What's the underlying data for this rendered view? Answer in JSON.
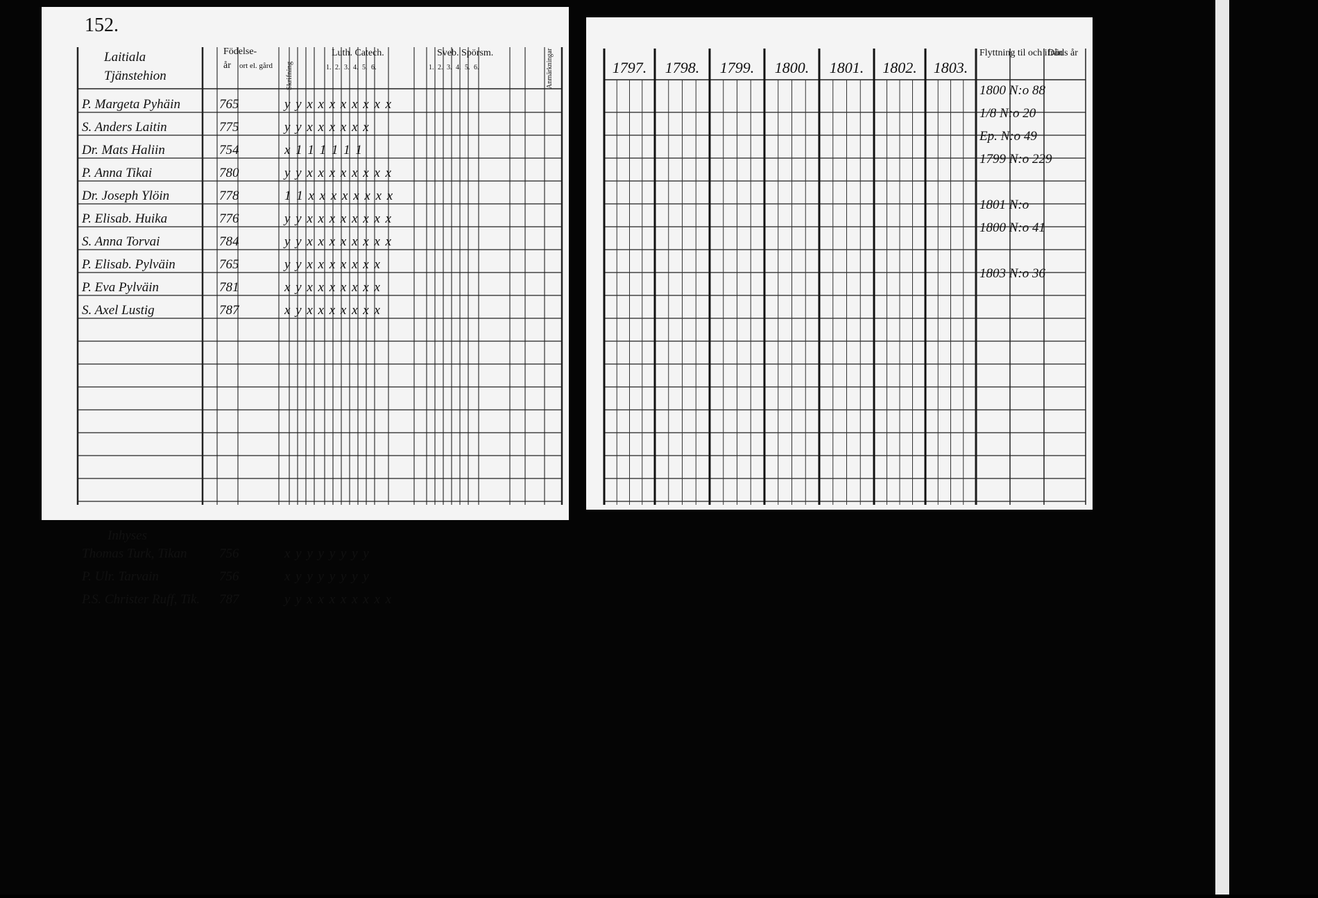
{
  "page_number": "152.",
  "left_page": {
    "village": "Laitiala",
    "subheading": "Tjänstehion",
    "headers": {
      "birth": "Födelse-",
      "year": "år",
      "place": "ort el. gård",
      "reading": "Skrifning",
      "catechism": "Luth. Catech.",
      "catechism_parts": [
        "1.",
        "2.",
        "3.",
        "4.",
        "5.",
        "6."
      ],
      "questions": "Sveb. Spörsm.",
      "questions_parts": [
        "1.",
        "2.",
        "3.",
        "4.",
        "5.",
        "6."
      ],
      "remarks": "Anmärkningar"
    },
    "rows": [
      {
        "name": "P. Margeta Pyhäin",
        "year": "765",
        "marks": "y y x x x x x x x x"
      },
      {
        "name": "S. Anders Laitin",
        "year": "775",
        "marks": "y y x x x x x x"
      },
      {
        "name": "Dr. Mats Haliin",
        "year": "754",
        "marks": "x 1 1 1 1 1 1"
      },
      {
        "name": "P. Anna Tikai",
        "year": "780",
        "marks": "y y x x x x x x x x"
      },
      {
        "name": "Dr. Joseph Ylöin",
        "year": "778",
        "marks": "1 1 x x x x x x x x"
      },
      {
        "name": "P. Elisab. Huika",
        "year": "776",
        "marks": "y y x x x x x x x x"
      },
      {
        "name": "S. Anna Torvai",
        "year": "784",
        "marks": "y y x x x x x x x x"
      },
      {
        "name": "P. Elisab. Pylväin",
        "year": "765",
        "marks": "y y x x x x x x x"
      },
      {
        "name": "P. Eva Pylväin",
        "year": "781",
        "marks": "x y x x x x x x x"
      },
      {
        "name": "S. Axel Lustig",
        "year": "787",
        "marks": "x y x x x x x x x"
      }
    ],
    "lower_heading": "Inhyses",
    "lower_rows": [
      {
        "name": "Thomas Turk, Tikan",
        "year": "756",
        "marks": "x y y y y y y y"
      },
      {
        "name": "P. Ulr. Tarvain",
        "year": "756",
        "marks": "x y y y y y y y"
      },
      {
        "name": "P.S. Christer Ruff, Tik.",
        "year": "787",
        "marks": "y y x x x x x x x x"
      }
    ]
  },
  "right_page": {
    "years": [
      "1797.",
      "1798.",
      "1799.",
      "1800.",
      "1801.",
      "1802.",
      "1803."
    ],
    "moving": "Flyttning til och ifrån",
    "death": "Döds år",
    "moving_notes": [
      "1800 N:o 88",
      "1/8 N:o 20",
      "Ep. N:o 49",
      "1799 N:o 229",
      "",
      "1801 N:o",
      "1800 N:o 41",
      "",
      "1803 N:o 36",
      ""
    ]
  }
}
